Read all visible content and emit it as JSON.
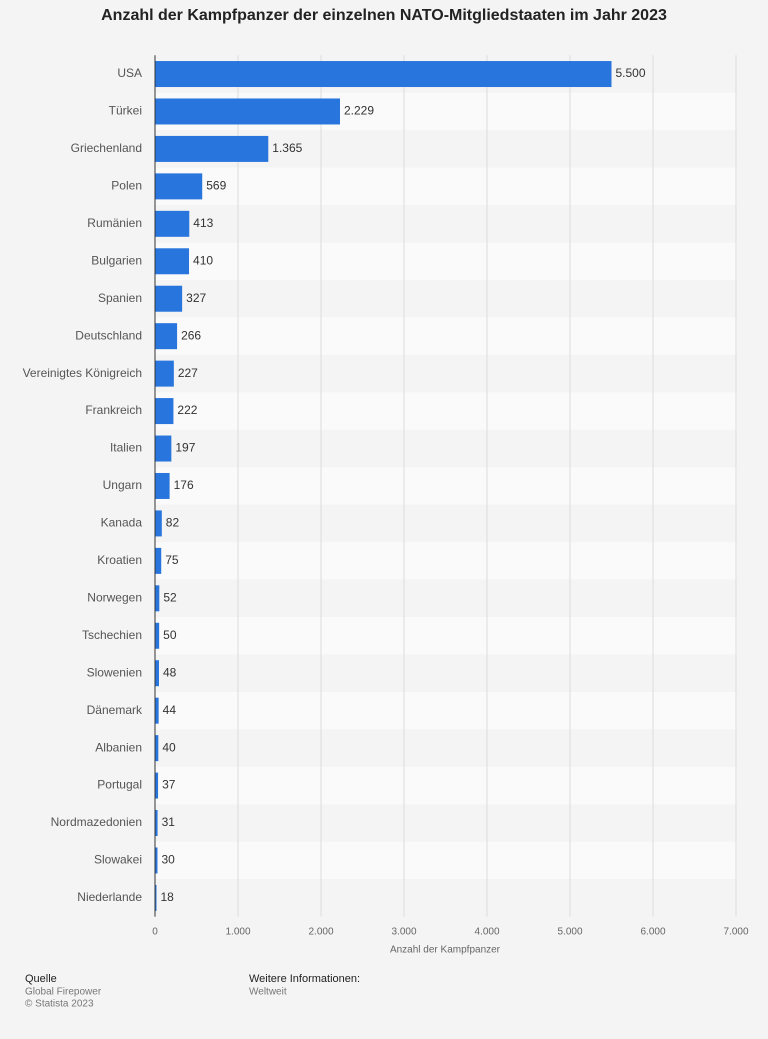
{
  "chart_data": {
    "type": "bar",
    "orientation": "horizontal",
    "title": "Anzahl der Kampfpanzer der einzelnen NATO-Mitgliedstaaten im Jahr 2023",
    "x_label": "Anzahl der Kampfpanzer",
    "categories": [
      "USA",
      "Türkei",
      "Griechenland",
      "Polen",
      "Rumänien",
      "Bulgarien",
      "Spanien",
      "Deutschland",
      "Vereinigtes Königreich",
      "Frankreich",
      "Italien",
      "Ungarn",
      "Kanada",
      "Kroatien",
      "Norwegen",
      "Tschechien",
      "Slowenien",
      "Dänemark",
      "Albanien",
      "Portugal",
      "Nordmazedonien",
      "Slowakei",
      "Niederlande"
    ],
    "values": [
      5500,
      2229,
      1365,
      569,
      413,
      410,
      327,
      266,
      227,
      222,
      197,
      176,
      82,
      75,
      52,
      50,
      48,
      44,
      40,
      37,
      31,
      30,
      18
    ],
    "value_labels": [
      "5.500",
      "2.229",
      "1.365",
      "569",
      "413",
      "410",
      "327",
      "266",
      "227",
      "222",
      "197",
      "176",
      "82",
      "75",
      "52",
      "50",
      "48",
      "44",
      "40",
      "37",
      "31",
      "30",
      "18"
    ],
    "color": "#2876dd",
    "xlim": [
      0,
      7000
    ],
    "xticks": [
      0,
      {
        "value": 1000,
        "label": "1.000"
      },
      {
        "value": 2000,
        "label": "2.000"
      },
      {
        "value": 3000,
        "label": "3.000"
      },
      {
        "value": 4000,
        "label": "4.000"
      },
      {
        "value": 5000,
        "label": "5.000"
      },
      {
        "value": 6000,
        "label": "6.000"
      },
      {
        "value": 7000,
        "label": "7.000"
      }
    ],
    "grid": true
  },
  "footer": {
    "source_title": "Quelle",
    "source": "Global Firepower",
    "copyright": "© Statista 2023",
    "info_title": "Weitere Informationen:",
    "info": "Weltweit"
  }
}
